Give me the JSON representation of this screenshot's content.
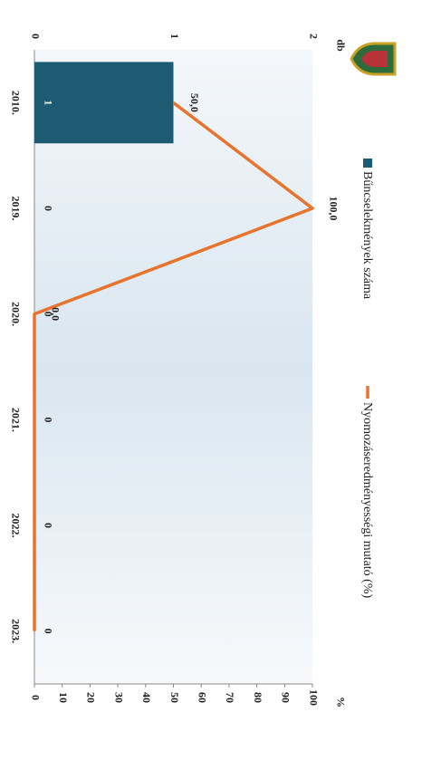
{
  "chart_data": {
    "type": "bar",
    "y_label": "db",
    "y2_label": "%",
    "categories": [
      "2010.",
      "2019.",
      "2020.",
      "2021.",
      "2022.",
      "2023."
    ],
    "series": [
      {
        "name": "Bűncselekmények száma",
        "type": "bar",
        "color": "#1d5b72",
        "values": [
          1,
          0,
          0,
          0,
          0,
          0
        ]
      },
      {
        "name": "Nyomozáseredményességi mutató (%)",
        "type": "line",
        "axis": "y2",
        "color": "#e8732c",
        "values": [
          50,
          100,
          0,
          0,
          0,
          0
        ],
        "value_labels": [
          "50,0",
          "100,0",
          "0,0",
          null,
          null,
          null
        ]
      }
    ],
    "ylim": [
      0,
      2
    ],
    "yticks": [
      0,
      1,
      2
    ],
    "y2lim": [
      0,
      100
    ],
    "y2ticks": [
      0,
      10,
      20,
      30,
      40,
      50,
      60,
      70,
      80,
      90,
      100
    ],
    "grid": false,
    "legend": "top"
  }
}
